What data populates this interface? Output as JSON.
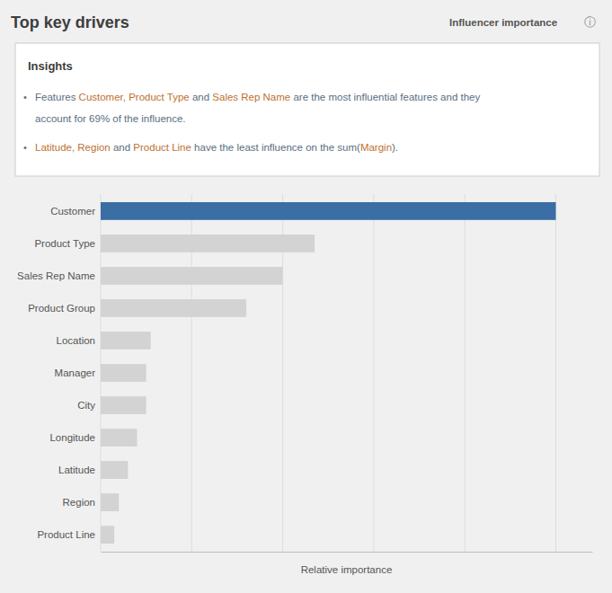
{
  "chart_data": {
    "type": "bar",
    "orientation": "horizontal",
    "title": "Top key drivers",
    "subtitle": "Influencer importance",
    "annotations": [
      {
        "text": "ⓘ"
      },
      {
        "text": "Insights"
      },
      {
        "bullet": "•",
        "segments": [
          {
            "text": "Features ",
            "color": "#5a6e7f"
          },
          {
            "text": "Customer, Product Type",
            "color": "#c07030"
          },
          {
            "text": " and ",
            "color": "#5a6e7f"
          },
          {
            "text": "Sales Rep Name",
            "color": "#c07030"
          },
          {
            "text": " are the most influential features and they",
            "color": "#5a6e7f"
          }
        ]
      },
      {
        "segments": [
          {
            "text": "account for ",
            "color": "#5a6e7f"
          },
          {
            "text": "69%",
            "color": "#5a6e7f"
          },
          {
            "text": " of the influence.",
            "color": "#5a6e7f"
          }
        ]
      },
      {
        "bullet": "•",
        "segments": [
          {
            "text": "Latitude, Region",
            "color": "#c07030"
          },
          {
            "text": " and ",
            "color": "#5a6e7f"
          },
          {
            "text": "Product Line",
            "color": "#c07030"
          },
          {
            "text": " have the least influence on the sum(",
            "color": "#5a6e7f"
          },
          {
            "text": "Margin",
            "color": "#c07030"
          },
          {
            "text": ").",
            "color": "#5a6e7f"
          }
        ]
      }
    ],
    "categories": [
      "Customer",
      "Product Type",
      "Sales Rep Name",
      "Product Group",
      "Location",
      "Manager",
      "City",
      "Longitude",
      "Latitude",
      "Region",
      "Product Line"
    ],
    "values": [
      100,
      47,
      40,
      32,
      11,
      10,
      10,
      8,
      6,
      4,
      3
    ],
    "colors": [
      "#3a6ea5",
      "#d3d3d3",
      "#d3d3d3",
      "#d3d3d3",
      "#d3d3d3",
      "#d3d3d3",
      "#d3d3d3",
      "#d3d3d3",
      "#d3d3d3",
      "#d3d3d3",
      "#d3d3d3"
    ],
    "xlabel": "Relative importance",
    "xlim": [
      0,
      108
    ],
    "xticks": [
      0,
      20,
      40,
      60,
      80,
      100
    ],
    "grid": true,
    "tick_labels": "y"
  }
}
